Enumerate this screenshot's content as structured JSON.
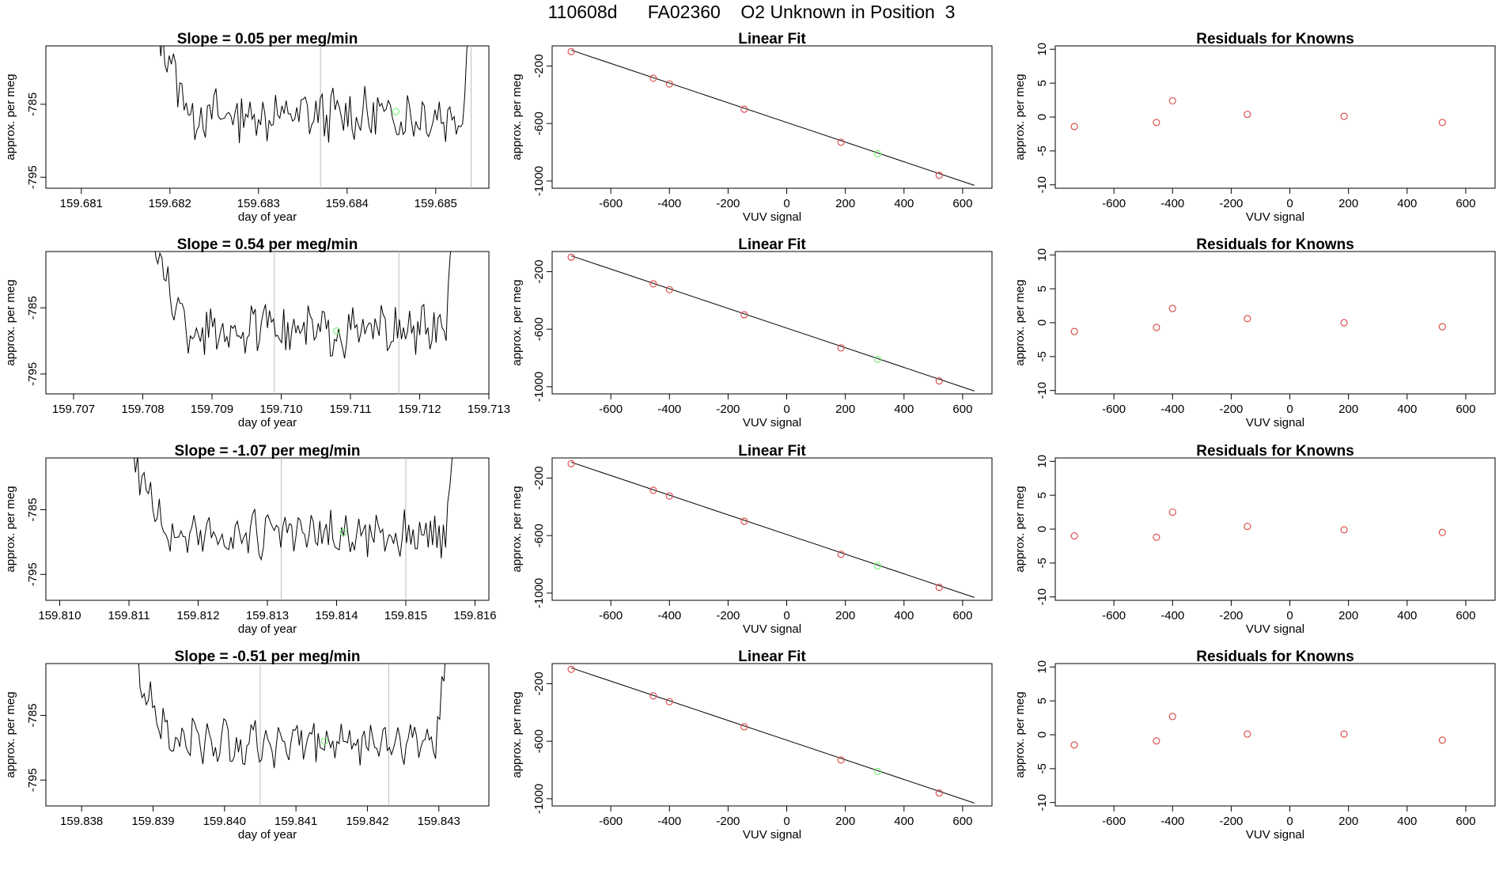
{
  "figure_title": "110608d      FA02360    O2 Unknown in Position  3",
  "colors": {
    "line": "#000000",
    "point": "#d9534f",
    "unknown_point": "#7cf07c",
    "marker_line": "#bdbdbd"
  },
  "chart_data": [
    {
      "type": "line",
      "row": 1,
      "title": "Slope =  0.05  per meg/min",
      "xlabel": "day of year",
      "ylabel": "approx. per meg",
      "xlim": [
        159.6806,
        159.6856
      ],
      "ylim": [
        -796.5,
        -777.0
      ],
      "xticks": [
        "159.681",
        "159.682",
        "159.683",
        "159.684",
        "159.685"
      ],
      "xtick_values": [
        159.681,
        159.682,
        159.683,
        159.684,
        159.685
      ],
      "yticks": [
        "-785",
        "-795"
      ],
      "ytick_values": [
        -785,
        -795
      ],
      "markers": [
        159.6837,
        159.6854
      ],
      "x_start": 159.6818,
      "x_end": 159.6854,
      "baseline": -786.5,
      "unknown_point": {
        "x": 159.68455,
        "y": -786.0
      }
    },
    {
      "type": "line",
      "row": 2,
      "title": "Slope =  0.54  per meg/min",
      "xlabel": "day of year",
      "ylabel": "approx. per meg",
      "xlim": [
        159.7066,
        159.713
      ],
      "ylim": [
        -798.0,
        -776.5
      ],
      "xticks": [
        "159.707",
        "159.708",
        "159.709",
        "159.710",
        "159.711",
        "159.712",
        "159.713"
      ],
      "xtick_values": [
        159.707,
        159.708,
        159.709,
        159.71,
        159.711,
        159.712,
        159.713
      ],
      "yticks": [
        "-785",
        "-795"
      ],
      "ytick_values": [
        -785,
        -795
      ],
      "markers": [
        159.7099,
        159.7117
      ],
      "x_start": 159.7081,
      "x_end": 159.7125,
      "baseline": -788.5,
      "unknown_point": {
        "x": 159.7108,
        "y": -788.5
      }
    },
    {
      "type": "line",
      "row": 3,
      "title": "Slope =  -1.07  per meg/min",
      "xlabel": "day of year",
      "ylabel": "approx. per meg",
      "xlim": [
        159.8098,
        159.8162
      ],
      "ylim": [
        -799.0,
        -777.0
      ],
      "xticks": [
        "159.810",
        "159.811",
        "159.812",
        "159.813",
        "159.814",
        "159.815",
        "159.816"
      ],
      "xtick_values": [
        159.81,
        159.811,
        159.812,
        159.813,
        159.814,
        159.815,
        159.816
      ],
      "yticks": [
        "-785",
        "-795"
      ],
      "ytick_values": [
        -785,
        -795
      ],
      "markers": [
        159.8132,
        159.815
      ],
      "x_start": 159.811,
      "x_end": 159.8157,
      "baseline": -789.0,
      "unknown_point": {
        "x": 159.8141,
        "y": -788.5
      }
    },
    {
      "type": "line",
      "row": 4,
      "title": "Slope =  -0.51  per meg/min",
      "xlabel": "day of year",
      "ylabel": "approx. per meg",
      "xlim": [
        159.8375,
        159.8437
      ],
      "ylim": [
        -799.0,
        -777.0
      ],
      "xticks": [
        "159.838",
        "159.839",
        "159.840",
        "159.841",
        "159.842",
        "159.843"
      ],
      "xtick_values": [
        159.838,
        159.839,
        159.84,
        159.841,
        159.842,
        159.843
      ],
      "yticks": [
        "-785",
        "-795"
      ],
      "ytick_values": [
        -785,
        -795
      ],
      "markers": [
        159.8405,
        159.8423
      ],
      "x_start": 159.8387,
      "x_end": 159.8431,
      "baseline": -789.0,
      "unknown_point": {
        "x": 159.8414,
        "y": -789.0
      }
    },
    {
      "type": "scatter",
      "row": 1,
      "title": "Linear Fit",
      "xlabel": "VUV signal",
      "ylabel": "approx. per meg",
      "xlim": [
        -800,
        700
      ],
      "ylim": [
        -1050,
        -60
      ],
      "xticks": [
        "-600",
        "-400",
        "-200",
        "0",
        "200",
        "400",
        "600"
      ],
      "yticks": [
        "-200",
        "-600",
        "-1000"
      ],
      "fit_line": {
        "x": [
          -735,
          640
        ],
        "y": [
          -90,
          -1030
        ]
      },
      "points": [
        {
          "x": -735,
          "y": -100
        },
        {
          "x": -455,
          "y": -285
        },
        {
          "x": -400,
          "y": -325
        },
        {
          "x": -145,
          "y": -500
        },
        {
          "x": 185,
          "y": -730
        },
        {
          "x": 520,
          "y": -960
        }
      ],
      "unknown_point": {
        "x": 310,
        "y": -810
      }
    },
    {
      "type": "scatter",
      "row": 2,
      "title": "Linear Fit",
      "xlabel": "VUV signal",
      "ylabel": "approx. per meg",
      "xlim": [
        -800,
        700
      ],
      "ylim": [
        -1050,
        -60
      ],
      "xticks": [
        "-600",
        "-400",
        "-200",
        "0",
        "200",
        "400",
        "600"
      ],
      "yticks": [
        "-200",
        "-600",
        "-1000"
      ],
      "fit_line": {
        "x": [
          -735,
          640
        ],
        "y": [
          -90,
          -1030
        ]
      },
      "points": [
        {
          "x": -735,
          "y": -100
        },
        {
          "x": -455,
          "y": -285
        },
        {
          "x": -400,
          "y": -325
        },
        {
          "x": -145,
          "y": -500
        },
        {
          "x": 185,
          "y": -730
        },
        {
          "x": 520,
          "y": -960
        }
      ],
      "unknown_point": {
        "x": 310,
        "y": -810
      }
    },
    {
      "type": "scatter",
      "row": 3,
      "title": "Linear Fit",
      "xlabel": "VUV signal",
      "ylabel": "approx. per meg",
      "xlim": [
        -800,
        700
      ],
      "ylim": [
        -1050,
        -60
      ],
      "xticks": [
        "-600",
        "-400",
        "-200",
        "0",
        "200",
        "400",
        "600"
      ],
      "yticks": [
        "-200",
        "-600",
        "-1000"
      ],
      "fit_line": {
        "x": [
          -735,
          640
        ],
        "y": [
          -90,
          -1030
        ]
      },
      "points": [
        {
          "x": -735,
          "y": -100
        },
        {
          "x": -455,
          "y": -285
        },
        {
          "x": -400,
          "y": -325
        },
        {
          "x": -145,
          "y": -500
        },
        {
          "x": 185,
          "y": -730
        },
        {
          "x": 520,
          "y": -960
        }
      ],
      "unknown_point": {
        "x": 310,
        "y": -810
      }
    },
    {
      "type": "scatter",
      "row": 4,
      "title": "Linear Fit",
      "xlabel": "VUV signal",
      "ylabel": "approx. per meg",
      "xlim": [
        -800,
        700
      ],
      "ylim": [
        -1050,
        -60
      ],
      "xticks": [
        "-600",
        "-400",
        "-200",
        "0",
        "200",
        "400",
        "600"
      ],
      "yticks": [
        "-200",
        "-600",
        "-1000"
      ],
      "fit_line": {
        "x": [
          -735,
          640
        ],
        "y": [
          -90,
          -1030
        ]
      },
      "points": [
        {
          "x": -735,
          "y": -100
        },
        {
          "x": -455,
          "y": -285
        },
        {
          "x": -400,
          "y": -325
        },
        {
          "x": -145,
          "y": -500
        },
        {
          "x": 185,
          "y": -730
        },
        {
          "x": 520,
          "y": -960
        }
      ],
      "unknown_point": {
        "x": 310,
        "y": -810
      }
    },
    {
      "type": "scatter",
      "row": 1,
      "title": "Residuals for Knowns",
      "xlabel": "VUV signal",
      "ylabel": "approx. per meg",
      "xlim": [
        -800,
        700
      ],
      "ylim": [
        -10.5,
        10.5
      ],
      "xticks": [
        "-600",
        "-400",
        "-200",
        "0",
        "200",
        "400",
        "600"
      ],
      "yticks": [
        "10",
        "5",
        "0",
        "-5",
        "-10"
      ],
      "points": [
        {
          "x": -735,
          "y": -1.4
        },
        {
          "x": -455,
          "y": -0.8
        },
        {
          "x": -400,
          "y": 2.4
        },
        {
          "x": -145,
          "y": 0.4
        },
        {
          "x": 185,
          "y": 0.1
        },
        {
          "x": 520,
          "y": -0.8
        }
      ]
    },
    {
      "type": "scatter",
      "row": 2,
      "title": "Residuals for Knowns",
      "xlabel": "VUV signal",
      "ylabel": "approx. per meg",
      "xlim": [
        -800,
        700
      ],
      "ylim": [
        -10.5,
        10.5
      ],
      "xticks": [
        "-600",
        "-400",
        "-200",
        "0",
        "200",
        "400",
        "600"
      ],
      "yticks": [
        "10",
        "5",
        "0",
        "-5",
        "-10"
      ],
      "points": [
        {
          "x": -735,
          "y": -1.3
        },
        {
          "x": -455,
          "y": -0.7
        },
        {
          "x": -400,
          "y": 2.1
        },
        {
          "x": -145,
          "y": 0.6
        },
        {
          "x": 185,
          "y": 0.0
        },
        {
          "x": 520,
          "y": -0.6
        }
      ]
    },
    {
      "type": "scatter",
      "row": 3,
      "title": "Residuals for Knowns",
      "xlabel": "VUV signal",
      "ylabel": "approx. per meg",
      "xlim": [
        -800,
        700
      ],
      "ylim": [
        -10.5,
        10.5
      ],
      "xticks": [
        "-600",
        "-400",
        "-200",
        "0",
        "200",
        "400",
        "600"
      ],
      "yticks": [
        "10",
        "5",
        "0",
        "-5",
        "-10"
      ],
      "points": [
        {
          "x": -735,
          "y": -1.0
        },
        {
          "x": -455,
          "y": -1.2
        },
        {
          "x": -400,
          "y": 2.5
        },
        {
          "x": -145,
          "y": 0.4
        },
        {
          "x": 185,
          "y": -0.1
        },
        {
          "x": 520,
          "y": -0.5
        }
      ]
    },
    {
      "type": "scatter",
      "row": 4,
      "title": "Residuals for Knowns",
      "xlabel": "VUV signal",
      "ylabel": "approx. per meg",
      "xlim": [
        -800,
        700
      ],
      "ylim": [
        -10.5,
        10.5
      ],
      "xticks": [
        "-600",
        "-400",
        "-200",
        "0",
        "200",
        "400",
        "600"
      ],
      "yticks": [
        "10",
        "5",
        "0",
        "-5",
        "-10"
      ],
      "points": [
        {
          "x": -735,
          "y": -1.5
        },
        {
          "x": -455,
          "y": -0.9
        },
        {
          "x": -400,
          "y": 2.7
        },
        {
          "x": -145,
          "y": 0.1
        },
        {
          "x": 185,
          "y": 0.1
        },
        {
          "x": 520,
          "y": -0.8
        }
      ]
    }
  ]
}
